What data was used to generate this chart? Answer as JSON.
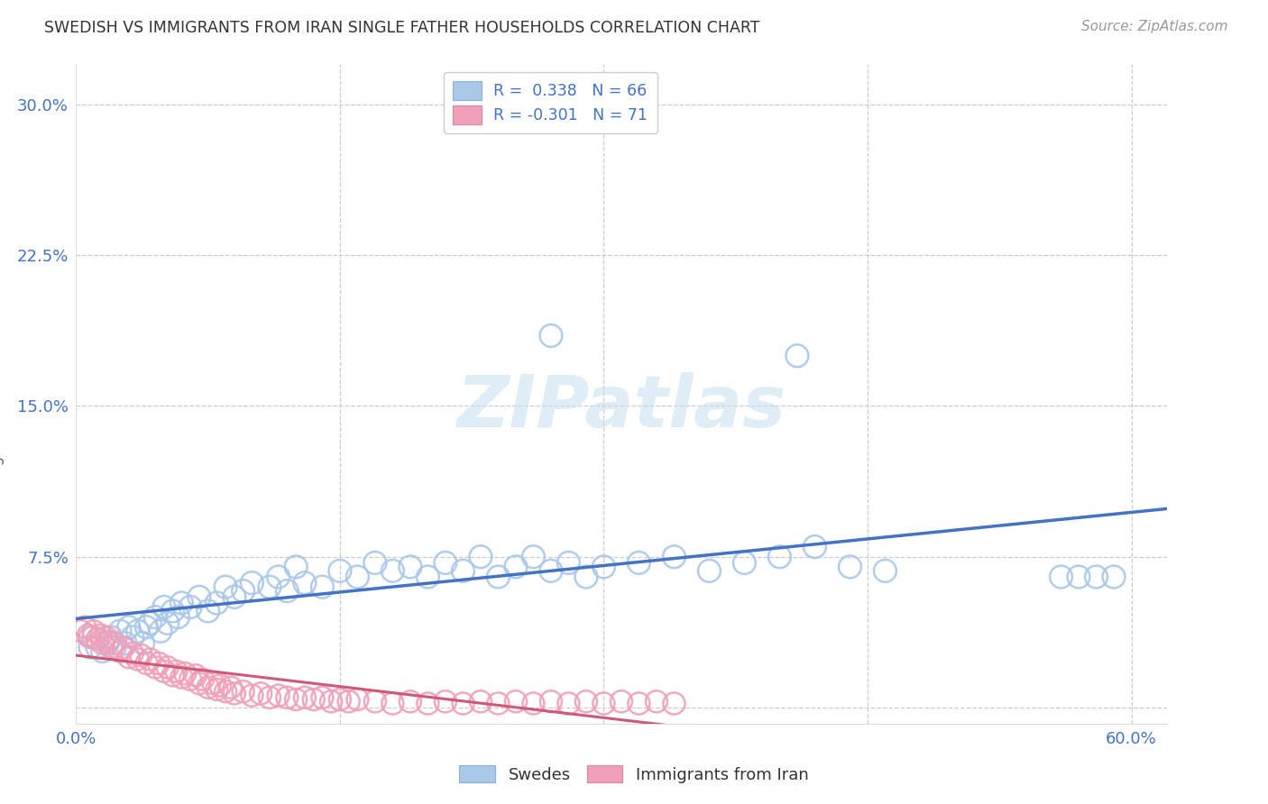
{
  "title": "SWEDISH VS IMMIGRANTS FROM IRAN SINGLE FATHER HOUSEHOLDS CORRELATION CHART",
  "source": "Source: ZipAtlas.com",
  "ylabel": "Single Father Households",
  "ytick_values": [
    0.0,
    0.075,
    0.15,
    0.225,
    0.3
  ],
  "ytick_labels": [
    "",
    "7.5%",
    "15.0%",
    "22.5%",
    "30.0%"
  ],
  "xlim": [
    0.0,
    0.62
  ],
  "ylim": [
    -0.008,
    0.32
  ],
  "background_color": "#ffffff",
  "blue_scatter_color": "#aac8e8",
  "blue_line_color": "#4472c4",
  "pink_scatter_color": "#f0a0b8",
  "pink_line_color": "#d05878",
  "legend_label1": "R =  0.338   N = 66",
  "legend_label2": "R = -0.301   N = 71",
  "bottom_legend_label1": "Swedes",
  "bottom_legend_label2": "Immigrants from Iran",
  "blue_x": [
    0.008,
    0.01,
    0.012,
    0.015,
    0.018,
    0.02,
    0.022,
    0.025,
    0.028,
    0.03,
    0.032,
    0.035,
    0.038,
    0.04,
    0.042,
    0.045,
    0.048,
    0.05,
    0.052,
    0.055,
    0.058,
    0.06,
    0.065,
    0.07,
    0.075,
    0.08,
    0.085,
    0.09,
    0.095,
    0.1,
    0.11,
    0.115,
    0.12,
    0.125,
    0.13,
    0.14,
    0.15,
    0.16,
    0.17,
    0.18,
    0.19,
    0.2,
    0.21,
    0.22,
    0.23,
    0.24,
    0.25,
    0.26,
    0.27,
    0.28,
    0.29,
    0.3,
    0.32,
    0.34,
    0.36,
    0.38,
    0.4,
    0.42,
    0.44,
    0.46,
    0.27,
    0.41,
    0.56,
    0.57,
    0.58,
    0.59
  ],
  "blue_y": [
    0.03,
    0.035,
    0.03,
    0.028,
    0.032,
    0.035,
    0.03,
    0.038,
    0.032,
    0.04,
    0.035,
    0.038,
    0.032,
    0.04,
    0.042,
    0.045,
    0.038,
    0.05,
    0.042,
    0.048,
    0.045,
    0.052,
    0.05,
    0.055,
    0.048,
    0.052,
    0.06,
    0.055,
    0.058,
    0.062,
    0.06,
    0.065,
    0.058,
    0.07,
    0.062,
    0.06,
    0.068,
    0.065,
    0.072,
    0.068,
    0.07,
    0.065,
    0.072,
    0.068,
    0.075,
    0.065,
    0.07,
    0.075,
    0.068,
    0.072,
    0.065,
    0.07,
    0.072,
    0.075,
    0.068,
    0.072,
    0.075,
    0.08,
    0.07,
    0.068,
    0.185,
    0.175,
    0.065,
    0.065,
    0.065,
    0.065
  ],
  "pink_x": [
    0.003,
    0.005,
    0.007,
    0.008,
    0.01,
    0.012,
    0.014,
    0.015,
    0.017,
    0.018,
    0.02,
    0.022,
    0.025,
    0.027,
    0.03,
    0.032,
    0.035,
    0.037,
    0.04,
    0.042,
    0.045,
    0.047,
    0.05,
    0.052,
    0.055,
    0.057,
    0.06,
    0.062,
    0.065,
    0.068,
    0.07,
    0.072,
    0.075,
    0.078,
    0.08,
    0.082,
    0.085,
    0.088,
    0.09,
    0.095,
    0.1,
    0.105,
    0.11,
    0.115,
    0.12,
    0.125,
    0.13,
    0.135,
    0.14,
    0.145,
    0.15,
    0.155,
    0.16,
    0.17,
    0.18,
    0.19,
    0.2,
    0.21,
    0.22,
    0.23,
    0.24,
    0.25,
    0.26,
    0.27,
    0.28,
    0.29,
    0.3,
    0.31,
    0.32,
    0.33,
    0.34
  ],
  "pink_y": [
    0.038,
    0.04,
    0.036,
    0.035,
    0.038,
    0.034,
    0.036,
    0.032,
    0.035,
    0.033,
    0.03,
    0.032,
    0.028,
    0.03,
    0.025,
    0.027,
    0.024,
    0.026,
    0.022,
    0.024,
    0.02,
    0.022,
    0.018,
    0.02,
    0.016,
    0.018,
    0.015,
    0.017,
    0.014,
    0.016,
    0.012,
    0.014,
    0.01,
    0.012,
    0.009,
    0.011,
    0.008,
    0.01,
    0.007,
    0.008,
    0.006,
    0.007,
    0.005,
    0.006,
    0.005,
    0.004,
    0.005,
    0.004,
    0.005,
    0.003,
    0.004,
    0.003,
    0.004,
    0.003,
    0.002,
    0.003,
    0.002,
    0.003,
    0.002,
    0.003,
    0.002,
    0.003,
    0.002,
    0.003,
    0.002,
    0.003,
    0.002,
    0.003,
    0.002,
    0.003,
    0.002
  ]
}
